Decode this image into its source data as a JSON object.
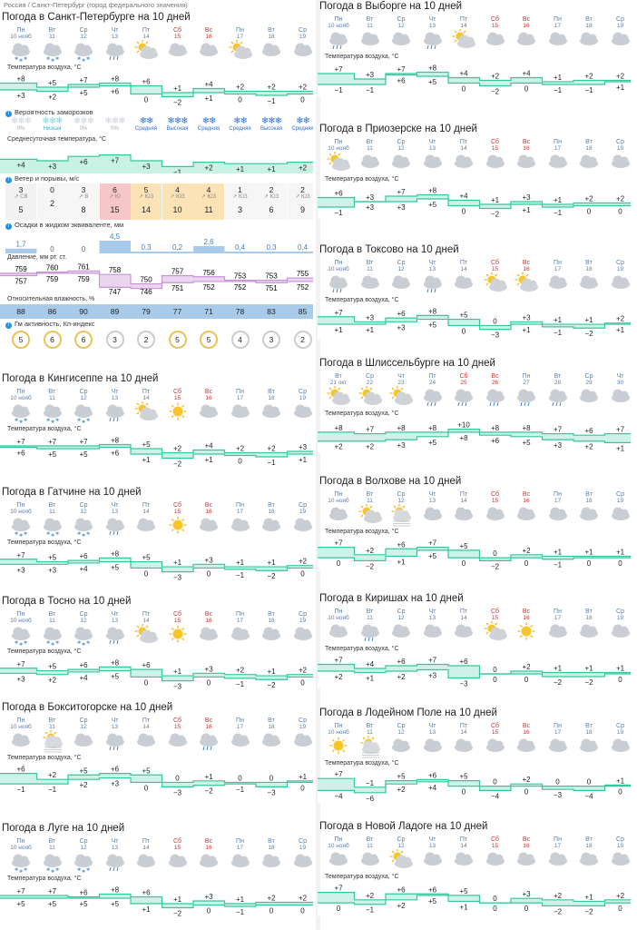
{
  "breadcrumb": "Россия / Санкт-Петербург (город федерального значения)",
  "labels": {
    "temp": "Температура воздуха, °C",
    "frost": "Вероятность заморозков",
    "avg": "Среднесуточная температура, °C",
    "wind": "Ветер и порывы, м/с",
    "precip": "Осадки в жидком эквиваленте, мм",
    "pressure": "Давление, мм рт. ст.",
    "humidity": "Относительная влажность, %",
    "kp": "Гм активность, Кп-индекс"
  },
  "colors": {
    "curve": "#35c79c",
    "fill": "#c9f1e4",
    "day_weekday": "#5a7fa8",
    "day_weekend": "#cc3333",
    "precip_bar": "#a9cbe9",
    "humidity_bar": "#a9cbe9",
    "kp_ring": "#e8c35a",
    "pressure_fill": "#ead7ef"
  },
  "spb": {
    "title": "Погода в Санкт-Петербурге на 10 дней",
    "days": [
      [
        "Пн",
        "10 нояб"
      ],
      [
        "Вт",
        "11"
      ],
      [
        "Ср",
        "12"
      ],
      [
        "Чт",
        "13"
      ],
      [
        "Пт",
        "14"
      ],
      [
        "Сб",
        "15"
      ],
      [
        "Вс",
        "16"
      ],
      [
        "Пн",
        "17"
      ],
      [
        "Вт",
        "18"
      ],
      [
        "Ср",
        "19"
      ]
    ],
    "icons": [
      "cloud-snow",
      "cloud-snow",
      "cloud-snow",
      "cloud-rain",
      "sun-cloud",
      "cloud",
      "cloud",
      "sun-cloud",
      "cloud",
      "cloud"
    ],
    "tmax": [
      "+8",
      "+5",
      "+7",
      "+8",
      "+6",
      "+1",
      "+4",
      "+2",
      "+2",
      "+2"
    ],
    "tmin": [
      "+3",
      "+2",
      "+5",
      "+6",
      "0",
      "−2",
      "+1",
      "0",
      "−1",
      "0"
    ],
    "frost": [
      [
        "❄❄❄",
        "0%"
      ],
      [
        "❄❄❄",
        "Низкая"
      ],
      [
        "❄❄❄",
        "0%"
      ],
      [
        "❄❄❄",
        "0%"
      ],
      [
        "❄❄",
        "Средняя"
      ],
      [
        "❄❄❄",
        "Высокая"
      ],
      [
        "❄❄",
        "Средняя"
      ],
      [
        "❄❄",
        "Средняя"
      ],
      [
        "❄❄❄",
        "Высокая"
      ],
      [
        "❄❄",
        "Средняя"
      ]
    ],
    "frost_hi": [
      false,
      true,
      false,
      false,
      true,
      true,
      true,
      true,
      true,
      true
    ],
    "avg": [
      "+4",
      "+3",
      "+6",
      "+7",
      "+3",
      "−1",
      "+2",
      "+1",
      "+1",
      "+2"
    ],
    "wind_speed": [
      "3",
      "0",
      "3",
      "6",
      "5",
      "4",
      "4",
      "1",
      "2",
      "2"
    ],
    "wind_dir": [
      "СВ",
      "",
      "В",
      "Ю",
      "ЮЗ",
      "ЮЗ",
      "ЮЗ",
      "ЮЗ",
      "ЮЗ",
      "ЮЗ"
    ],
    "wind_gust": [
      "5",
      "2",
      "8",
      "15",
      "14",
      "10",
      "11",
      "3",
      "6",
      "9"
    ],
    "precip": [
      "1,7",
      "0",
      "0",
      "4,5",
      "0,3",
      "0,2",
      "2,6",
      "0,4",
      "0,3",
      "0,4"
    ],
    "pressure_a": [
      "759",
      "760",
      "761",
      "758",
      "750",
      "757",
      "756",
      "753",
      "753",
      "755"
    ],
    "pressure_b": [
      "757",
      "759",
      "759",
      "747",
      "746",
      "751",
      "752",
      "752",
      "751",
      "752"
    ],
    "humidity": [
      "88",
      "86",
      "90",
      "89",
      "79",
      "77",
      "71",
      "78",
      "83",
      "85"
    ],
    "kp": [
      "5",
      "6",
      "6",
      "3",
      "2",
      "5",
      "5",
      "4",
      "3",
      "2"
    ]
  },
  "widgets": [
    {
      "title": "Погода в Кингисеппе на 10 дней",
      "days": [
        [
          "Пн",
          "10 нояб"
        ],
        [
          "Вт",
          "11"
        ],
        [
          "Ср",
          "12"
        ],
        [
          "Чт",
          "13"
        ],
        [
          "Пт",
          "14"
        ],
        [
          "Сб",
          "15"
        ],
        [
          "Вс",
          "16"
        ],
        [
          "Пн",
          "17"
        ],
        [
          "Вт",
          "18"
        ],
        [
          "Ср",
          "19"
        ]
      ],
      "icons": [
        "cloud-snow",
        "cloud-snow",
        "cloud-snow",
        "cloud-rain",
        "sun-cloud",
        "sun",
        "cloud",
        "cloud",
        "cloud",
        "cloud"
      ],
      "tmax": [
        "+7",
        "+7",
        "+7",
        "+8",
        "+5",
        "+2",
        "+4",
        "+2",
        "+2",
        "+3"
      ],
      "tmin": [
        "+6",
        "+5",
        "+5",
        "+6",
        "+1",
        "−2",
        "+1",
        "0",
        "−1",
        "+1"
      ]
    },
    {
      "title": "Погода в Гатчине на 10 дней",
      "days": [
        [
          "Пн",
          "10 нояб"
        ],
        [
          "Вт",
          "11"
        ],
        [
          "Ср",
          "12"
        ],
        [
          "Чт",
          "13"
        ],
        [
          "Пт",
          "14"
        ],
        [
          "Сб",
          "15"
        ],
        [
          "Вс",
          "16"
        ],
        [
          "Пн",
          "17"
        ],
        [
          "Вт",
          "18"
        ],
        [
          "Ср",
          "19"
        ]
      ],
      "icons": [
        "cloud-snow",
        "cloud-snow",
        "cloud-snow",
        "cloud-rain",
        "cloud",
        "sun",
        "cloud",
        "cloud",
        "cloud",
        "cloud"
      ],
      "tmax": [
        "+7",
        "+5",
        "+6",
        "+8",
        "+5",
        "+1",
        "+3",
        "+1",
        "+1",
        "+2"
      ],
      "tmin": [
        "+3",
        "+3",
        "+4",
        "+5",
        "0",
        "−3",
        "0",
        "−1",
        "−2",
        "0"
      ]
    },
    {
      "title": "Погода в Тосно на 10 дней",
      "days": [
        [
          "Пн",
          "10 нояб"
        ],
        [
          "Вт",
          "11"
        ],
        [
          "Ср",
          "12"
        ],
        [
          "Чт",
          "13"
        ],
        [
          "Пт",
          "14"
        ],
        [
          "Сб",
          "15"
        ],
        [
          "Вс",
          "16"
        ],
        [
          "Пн",
          "17"
        ],
        [
          "Вт",
          "18"
        ],
        [
          "Ср",
          "19"
        ]
      ],
      "icons": [
        "cloud-snow",
        "cloud-snow",
        "cloud-snow",
        "cloud-rain",
        "sun-cloud",
        "sun",
        "cloud",
        "cloud",
        "cloud",
        "cloud"
      ],
      "tmax": [
        "+7",
        "+5",
        "+6",
        "+8",
        "+6",
        "+1",
        "+3",
        "+2",
        "+1",
        "+2"
      ],
      "tmin": [
        "+3",
        "+2",
        "+4",
        "+5",
        "0",
        "−3",
        "0",
        "−1",
        "−2",
        "0"
      ]
    },
    {
      "title": "Погода в Бокситогорске на 10 дней",
      "days": [
        [
          "Пн",
          "10 нояб"
        ],
        [
          "Вт",
          "11"
        ],
        [
          "Ср",
          "12"
        ],
        [
          "Чт",
          "13"
        ],
        [
          "Пт",
          "14"
        ],
        [
          "Сб",
          "15"
        ],
        [
          "Вс",
          "16"
        ],
        [
          "Пн",
          "17"
        ],
        [
          "Вт",
          "18"
        ],
        [
          "Ср",
          "19"
        ]
      ],
      "icons": [
        "cloud",
        "sun-fog",
        "cloud",
        "cloud-rain",
        "cloud",
        "cloud",
        "cloud-rain",
        "cloud",
        "cloud",
        "cloud"
      ],
      "tmax": [
        "+6",
        "+2",
        "+5",
        "+6",
        "+5",
        "0",
        "+1",
        "0",
        "0",
        "+1"
      ],
      "tmin": [
        "−1",
        "−1",
        "+2",
        "+3",
        "0",
        "−3",
        "−2",
        "−1",
        "−3",
        "0"
      ]
    },
    {
      "title": "Погода в Луге на 10 дней",
      "days": [
        [
          "Пн",
          "10 нояб"
        ],
        [
          "Вт",
          "11"
        ],
        [
          "Ср",
          "12"
        ],
        [
          "Чт",
          "13"
        ],
        [
          "Пт",
          "14"
        ],
        [
          "Сб",
          "15"
        ],
        [
          "Вс",
          "16"
        ],
        [
          "Пн",
          "17"
        ],
        [
          "Вт",
          "18"
        ],
        [
          "Ср",
          "19"
        ]
      ],
      "icons": [
        "cloud-snow",
        "cloud-snow",
        "cloud-snow",
        "cloud-rain",
        "cloud",
        "cloud",
        "cloud",
        "cloud",
        "cloud",
        "cloud"
      ],
      "tmax": [
        "+7",
        "+7",
        "+6",
        "+8",
        "+6",
        "+1",
        "+3",
        "+1",
        "+2",
        "+2"
      ],
      "tmin": [
        "+5",
        "+5",
        "+5",
        "+5",
        "+1",
        "−2",
        "0",
        "−1",
        "0",
        "0"
      ]
    },
    {
      "title": "Погода в Выборге на 10 дней",
      "days": [
        [
          "Пн",
          "10 нояб"
        ],
        [
          "Вт",
          "11"
        ],
        [
          "Ср",
          "12"
        ],
        [
          "Чт",
          "13"
        ],
        [
          "Пт",
          "14"
        ],
        [
          "Сб",
          "15"
        ],
        [
          "Вс",
          "16"
        ],
        [
          "Пн",
          "17"
        ],
        [
          "Вт",
          "18"
        ],
        [
          "Ср",
          "19"
        ]
      ],
      "icons": [
        "cloud-rain",
        "cloud",
        "cloud",
        "cloud-rain",
        "sun-cloud",
        "cloud",
        "cloud",
        "cloud",
        "cloud",
        "cloud"
      ],
      "tmax": [
        "+7",
        "+3",
        "+7",
        "+8",
        "+4",
        "+2",
        "+4",
        "+1",
        "+2",
        "+2"
      ],
      "tmin": [
        "−1",
        "−1",
        "+6",
        "+5",
        "0",
        "−2",
        "0",
        "−1",
        "−1",
        "+1"
      ]
    },
    {
      "title": "Погода в Приозерске на 10 дней",
      "days": [
        [
          "Пн",
          "10 нояб"
        ],
        [
          "Вт",
          "11"
        ],
        [
          "Ср",
          "12"
        ],
        [
          "Чт",
          "13"
        ],
        [
          "Пт",
          "14"
        ],
        [
          "Сб",
          "15"
        ],
        [
          "Вс",
          "16"
        ],
        [
          "Пн",
          "17"
        ],
        [
          "Вт",
          "18"
        ],
        [
          "Ср",
          "19"
        ]
      ],
      "icons": [
        "sun-cloud",
        "cloud",
        "cloud",
        "cloud",
        "cloud",
        "cloud",
        "cloud",
        "cloud",
        "cloud",
        "cloud"
      ],
      "tmax": [
        "+6",
        "+3",
        "+7",
        "+8",
        "+4",
        "+1",
        "+3",
        "+1",
        "+2",
        "+2"
      ],
      "tmin": [
        "−1",
        "+3",
        "+3",
        "+5",
        "0",
        "−2",
        "+1",
        "−1",
        "0",
        "0"
      ]
    },
    {
      "title": "Погода в Токсово на 10 дней",
      "days": [
        [
          "Пн",
          "10 нояб"
        ],
        [
          "Вт",
          "11"
        ],
        [
          "Ср",
          "12"
        ],
        [
          "Чт",
          "13"
        ],
        [
          "Пт",
          "14"
        ],
        [
          "Сб",
          "15"
        ],
        [
          "Вс",
          "16"
        ],
        [
          "Пн",
          "17"
        ],
        [
          "Вт",
          "18"
        ],
        [
          "Ср",
          "19"
        ]
      ],
      "icons": [
        "cloud-rain",
        "cloud",
        "cloud",
        "cloud-rain",
        "cloud",
        "sun-cloud",
        "sun-cloud",
        "cloud",
        "cloud",
        "cloud"
      ],
      "tmax": [
        "+7",
        "+3",
        "+6",
        "+8",
        "+5",
        "0",
        "+3",
        "+1",
        "+1",
        "+2"
      ],
      "tmin": [
        "+1",
        "+1",
        "+3",
        "+5",
        "0",
        "−3",
        "+1",
        "−1",
        "−2",
        "+1"
      ]
    },
    {
      "title": "Погода в Шлиссельбурге на 10 дней",
      "days": [
        [
          "Вт",
          "21 окт"
        ],
        [
          "Ср",
          "22"
        ],
        [
          "Чт",
          "23"
        ],
        [
          "Пт",
          "24"
        ],
        [
          "Сб",
          "25"
        ],
        [
          "Вс",
          "26"
        ],
        [
          "Пн",
          "27"
        ],
        [
          "Вт",
          "28"
        ],
        [
          "Ср",
          "29"
        ],
        [
          "Чт",
          "30"
        ]
      ],
      "icons": [
        "sun-cloud",
        "sun-cloud",
        "sun-cloud",
        "cloud-rain",
        "cloud-rain",
        "cloud-rain",
        "cloud-rain",
        "cloud-rain",
        "cloud",
        "cloud"
      ],
      "tmax": [
        "+8",
        "+7",
        "+8",
        "+8",
        "+10",
        "+8",
        "+8",
        "+7",
        "+6",
        "+7"
      ],
      "tmin": [
        "+2",
        "+2",
        "+3",
        "+5",
        "+8",
        "+6",
        "+5",
        "+3",
        "+2",
        "+1"
      ]
    },
    {
      "title": "Погода в Волхове на 10 дней",
      "days": [
        [
          "Пн",
          "10 нояб"
        ],
        [
          "Вт",
          "11"
        ],
        [
          "Ср",
          "12"
        ],
        [
          "Чт",
          "13"
        ],
        [
          "Пт",
          "14"
        ],
        [
          "Сб",
          "15"
        ],
        [
          "Вс",
          "16"
        ],
        [
          "Пн",
          "17"
        ],
        [
          "Вт",
          "18"
        ],
        [
          "Ср",
          "19"
        ]
      ],
      "icons": [
        "cloud",
        "sun-cloud",
        "sun-fog",
        "cloud",
        "cloud",
        "cloud",
        "cloud",
        "cloud",
        "cloud",
        "cloud"
      ],
      "tmax": [
        "+7",
        "+2",
        "+6",
        "+7",
        "+5",
        "0",
        "+2",
        "+1",
        "+1",
        "+1"
      ],
      "tmin": [
        "0",
        "−2",
        "+1",
        "+5",
        "0",
        "−2",
        "0",
        "−1",
        "0",
        "0"
      ]
    },
    {
      "title": "Погода в Киришах на 10 дней",
      "days": [
        [
          "Пн",
          "10 нояб"
        ],
        [
          "Вт",
          "11"
        ],
        [
          "Ср",
          "12"
        ],
        [
          "Чт",
          "13"
        ],
        [
          "Пт",
          "14"
        ],
        [
          "Сб",
          "15"
        ],
        [
          "Вс",
          "16"
        ],
        [
          "Пн",
          "17"
        ],
        [
          "Вт",
          "18"
        ],
        [
          "Ср",
          "19"
        ]
      ],
      "icons": [
        "cloud",
        "cloud-rain",
        "cloud",
        "cloud",
        "cloud",
        "sun-cloud",
        "sun",
        "cloud",
        "cloud",
        "cloud"
      ],
      "tmax": [
        "+7",
        "+4",
        "+6",
        "+7",
        "+6",
        "0",
        "+2",
        "+1",
        "+1",
        "+1"
      ],
      "tmin": [
        "+2",
        "+1",
        "+2",
        "+3",
        "−3",
        "0",
        "0",
        "−2",
        "−2",
        "0"
      ]
    },
    {
      "title": "Погода в Лодейном Поле на 10 дней",
      "days": [
        [
          "Пн",
          "10 нояб"
        ],
        [
          "Вт",
          "11"
        ],
        [
          "Ср",
          "12"
        ],
        [
          "Чт",
          "13"
        ],
        [
          "Пт",
          "14"
        ],
        [
          "Сб",
          "15"
        ],
        [
          "Вс",
          "16"
        ],
        [
          "Пн",
          "17"
        ],
        [
          "Вт",
          "18"
        ],
        [
          "Ср",
          "19"
        ]
      ],
      "icons": [
        "sun",
        "sun-fog",
        "cloud",
        "cloud",
        "cloud",
        "cloud",
        "cloud",
        "cloud",
        "cloud",
        "cloud"
      ],
      "tmax": [
        "+7",
        "−1",
        "+5",
        "+6",
        "+5",
        "0",
        "+2",
        "0",
        "0",
        "+1"
      ],
      "tmin": [
        "−4",
        "−6",
        "+2",
        "+4",
        "0",
        "−4",
        "0",
        "−3",
        "−4",
        "0"
      ]
    },
    {
      "title": "Погода в Новой Ладоге на 10 дней",
      "days": [
        [
          "Пн",
          "10 нояб"
        ],
        [
          "Вт",
          "11"
        ],
        [
          "Ср",
          "12"
        ],
        [
          "Чт",
          "13"
        ],
        [
          "Пт",
          "14"
        ],
        [
          "Сб",
          "15"
        ],
        [
          "Вс",
          "16"
        ],
        [
          "Пн",
          "17"
        ],
        [
          "Вт",
          "18"
        ],
        [
          "Ср",
          "19"
        ]
      ],
      "icons": [
        "cloud",
        "cloud",
        "sun-cloud",
        "cloud",
        "cloud",
        "cloud",
        "cloud",
        "cloud",
        "cloud",
        "cloud"
      ],
      "tmax": [
        "+7",
        "+2",
        "+6",
        "+6",
        "+5",
        "0",
        "+3",
        "+2",
        "+1",
        "+2"
      ],
      "tmin": [
        "0",
        "−1",
        "+2",
        "+5",
        "+1",
        "0",
        "0",
        "−2",
        "−2",
        "0"
      ]
    }
  ]
}
